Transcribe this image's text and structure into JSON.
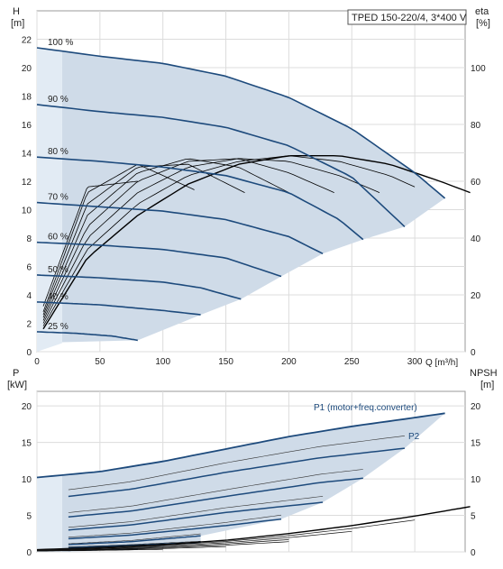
{
  "chart_data": [
    {
      "type": "line",
      "title": "TPED 150-220/4, 3*400 V",
      "xlabel": "Q [m³/h]",
      "ylabel_left": "H",
      "ylabel_left_unit": "[m]",
      "ylabel_right": "eta",
      "ylabel_right_unit": "[%]",
      "xlim": [
        0,
        340
      ],
      "ylim_left": [
        0,
        24
      ],
      "ylim_right": [
        0,
        120
      ],
      "x_ticks": [
        0,
        50,
        100,
        150,
        200,
        250,
        300
      ],
      "y_ticks_left": [
        0,
        2,
        4,
        6,
        8,
        10,
        12,
        14,
        16,
        18,
        20,
        22
      ],
      "y_ticks_right": [
        0,
        20,
        40,
        60,
        80,
        100
      ],
      "grid": true,
      "colors": {
        "curve": "#1d4a7c",
        "envelope": "#cfdbe8",
        "eta": "#000000",
        "grid": "#dcdcdc"
      },
      "series": [
        {
          "name": "100 %",
          "x": [
            0,
            50,
            100,
            150,
            200,
            250,
            300,
            324
          ],
          "y": [
            21.4,
            20.8,
            20.3,
            19.4,
            17.9,
            15.7,
            12.6,
            10.8
          ]
        },
        {
          "name": "90 %",
          "x": [
            0,
            50,
            100,
            150,
            200,
            250,
            292
          ],
          "y": [
            17.4,
            16.9,
            16.5,
            15.8,
            14.5,
            12.3,
            8.8
          ]
        },
        {
          "name": "80 %",
          "x": [
            0,
            50,
            100,
            150,
            200,
            240,
            259
          ],
          "y": [
            13.7,
            13.4,
            13.0,
            12.4,
            11.2,
            9.3,
            7.9
          ]
        },
        {
          "name": "70 %",
          "x": [
            0,
            50,
            100,
            150,
            200,
            227
          ],
          "y": [
            10.5,
            10.2,
            9.9,
            9.3,
            8.1,
            6.9
          ]
        },
        {
          "name": "60 %",
          "x": [
            0,
            50,
            100,
            150,
            194
          ],
          "y": [
            7.7,
            7.5,
            7.2,
            6.6,
            5.3
          ]
        },
        {
          "name": "50 %",
          "x": [
            0,
            50,
            100,
            130,
            162
          ],
          "y": [
            5.4,
            5.2,
            4.9,
            4.5,
            3.7
          ]
        },
        {
          "name": "40 %",
          "x": [
            0,
            50,
            100,
            130
          ],
          "y": [
            3.5,
            3.3,
            2.9,
            2.6
          ]
        },
        {
          "name": "25 %",
          "x": [
            0,
            30,
            60,
            80
          ],
          "y": [
            1.4,
            1.3,
            1.1,
            0.8
          ]
        }
      ],
      "eta_series": [
        {
          "x": [
            5,
            40,
            80,
            120,
            160,
            200,
            240,
            280,
            320,
            344
          ],
          "y": [
            8,
            33,
            48,
            59,
            66,
            69,
            69,
            66,
            60,
            56
          ]
        },
        {
          "x": [
            5,
            40,
            80,
            120,
            160,
            200,
            240,
            280,
            300
          ],
          "y": [
            9,
            36,
            52,
            62,
            67,
            69,
            67,
            62,
            58
          ]
        },
        {
          "x": [
            5,
            40,
            80,
            120,
            160,
            200,
            240,
            272
          ],
          "y": [
            10,
            40,
            56,
            65,
            68,
            67,
            62,
            56
          ]
        },
        {
          "x": [
            5,
            40,
            80,
            120,
            160,
            200,
            236
          ],
          "y": [
            11,
            44,
            60,
            67,
            68,
            63,
            56
          ]
        },
        {
          "x": [
            5,
            40,
            80,
            120,
            160,
            200
          ],
          "y": [
            12,
            48,
            63,
            68,
            65,
            56
          ]
        },
        {
          "x": [
            5,
            40,
            80,
            120,
            165
          ],
          "y": [
            13,
            52,
            65,
            66,
            56
          ]
        },
        {
          "x": [
            5,
            40,
            80,
            125
          ],
          "y": [
            14,
            56,
            66,
            57
          ]
        },
        {
          "x": [
            5,
            40,
            80
          ],
          "y": [
            16,
            58,
            60
          ]
        }
      ]
    },
    {
      "type": "line",
      "xlabel": "",
      "ylabel_left": "P",
      "ylabel_left_unit": "[kW]",
      "ylabel_right": "NPSH",
      "ylabel_right_unit": "[m]",
      "xlim": [
        0,
        340
      ],
      "ylim_left": [
        0,
        22
      ],
      "ylim_right": [
        0,
        22
      ],
      "y_ticks_left": [
        0,
        5,
        10,
        15,
        20
      ],
      "y_ticks_right": [
        0,
        5,
        10,
        15,
        20
      ],
      "grid": true,
      "annotations": [
        "P1 (motor+freq.converter)",
        "P2"
      ],
      "series": [
        {
          "name": "P1 (motor+freq.converter)",
          "x": [
            0,
            50,
            100,
            150,
            200,
            250,
            300,
            324
          ],
          "y": [
            10.2,
            11.0,
            12.4,
            14.1,
            15.8,
            17.2,
            18.4,
            19.0
          ]
        },
        {
          "x": [
            25,
            75,
            150,
            225,
            292
          ],
          "y": [
            7.6,
            8.6,
            10.9,
            12.9,
            14.2
          ]
        },
        {
          "x": [
            25,
            75,
            150,
            225,
            259
          ],
          "y": [
            4.8,
            5.6,
            7.6,
            9.5,
            10.1
          ]
        },
        {
          "x": [
            25,
            75,
            150,
            227
          ],
          "y": [
            3.0,
            3.7,
            5.4,
            6.8
          ]
        },
        {
          "x": [
            25,
            75,
            150,
            194
          ],
          "y": [
            1.8,
            2.3,
            3.6,
            4.5
          ]
        },
        {
          "x": [
            25,
            75,
            130
          ],
          "y": [
            1.0,
            1.4,
            2.2
          ]
        },
        {
          "x": [
            25,
            75,
            130
          ],
          "y": [
            0.6,
            0.9,
            1.3
          ]
        },
        {
          "x": [
            25,
            60,
            80
          ],
          "y": [
            0.2,
            0.3,
            0.4
          ]
        }
      ],
      "npsh": {
        "x": [
          0,
          50,
          100,
          150,
          200,
          250,
          300,
          344
        ],
        "y": [
          0.3,
          0.6,
          1.0,
          1.6,
          2.5,
          3.6,
          4.9,
          6.2
        ]
      }
    }
  ]
}
